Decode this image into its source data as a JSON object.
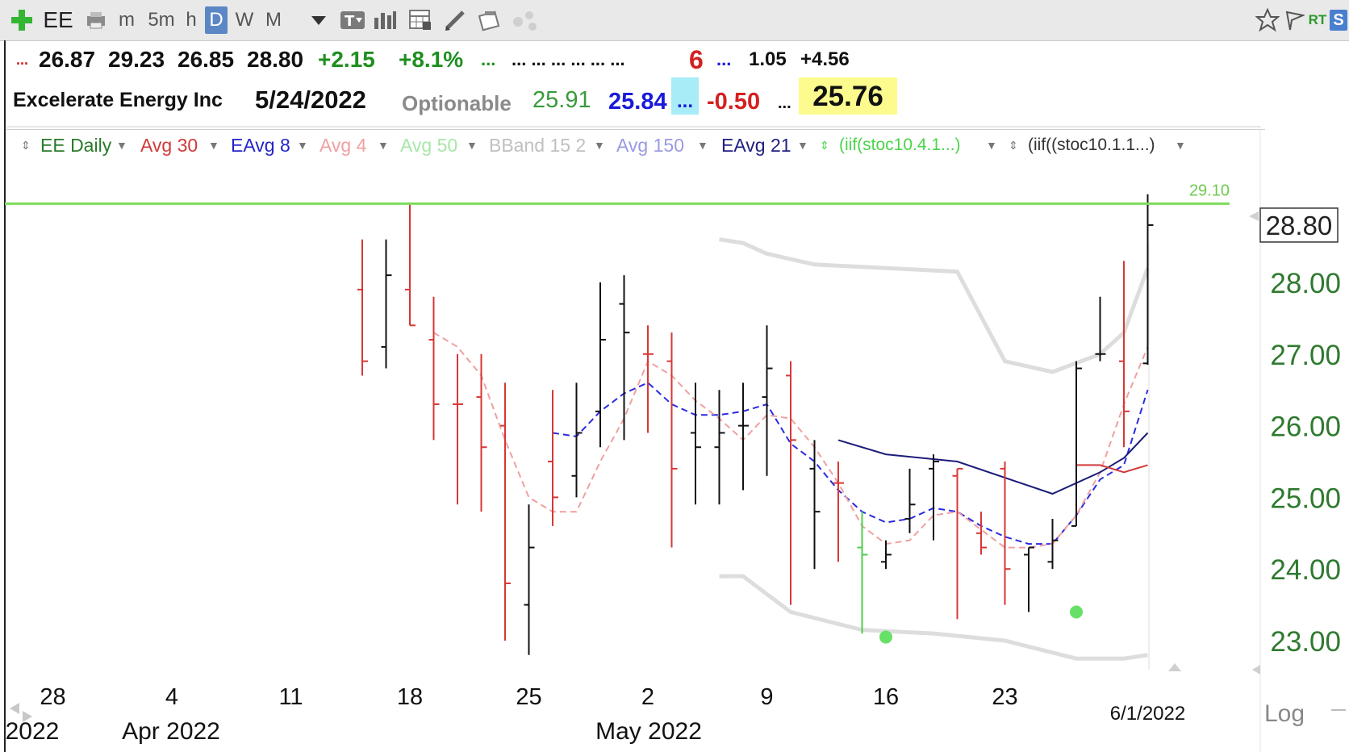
{
  "toolbar": {
    "symbol": "EE",
    "intervals": [
      "m",
      "5m",
      "h",
      "D",
      "W",
      "M"
    ],
    "active_interval": "D",
    "rt_label": "RT",
    "s_label": "S",
    "icons": [
      "add-icon",
      "print-icon",
      "dropdown-icon",
      "text-tool-icon",
      "bar-chart-icon",
      "calculator-icon",
      "pencil-icon",
      "clipboard-icon",
      "network-icon",
      "star-icon",
      "flag-icon"
    ]
  },
  "quote": {
    "open": "26.87",
    "high": "29.23",
    "low": "26.85",
    "close": "28.80",
    "change": "+2.15",
    "change_pct": "+8.1%",
    "dots_green": "...",
    "dots_black": "... ... ... ... ... ...",
    "count": "6",
    "dots_blue": "...",
    "value_a": "1.05",
    "value_b": "+4.56",
    "prefix_dots": "...",
    "company": "Excelerate Energy Inc",
    "date": "5/24/2022",
    "optionable": "Optionable",
    "val_green": "25.91",
    "val_blue": "25.84",
    "dots_cyan": "...",
    "val_red": "-0.50",
    "dots_black2": "...",
    "val_yellow": "25.76",
    "colors": {
      "up": "#1f8f1f",
      "down": "#d42020",
      "blue": "#1a1adb",
      "cyan": "#a8ecf7",
      "yellow": "#fdfb8e"
    }
  },
  "studies": [
    {
      "label": "EE Daily",
      "color": "#2a7a2a"
    },
    {
      "label": "Avg 30",
      "color": "#d23a3a"
    },
    {
      "label": "EAvg 8",
      "color": "#2424c8"
    },
    {
      "label": "Avg 4",
      "color": "#f0a0a0"
    },
    {
      "label": "Avg 50",
      "color": "#a8e6a8"
    },
    {
      "label": "BBand 15 2",
      "color": "#c0c0c0"
    },
    {
      "label": "Avg 150",
      "color": "#9a9ae0"
    },
    {
      "label": "EAvg 21",
      "color": "#202080"
    },
    {
      "label": "(iif(stoc10.4.1...)",
      "color": "#4ad44a"
    },
    {
      "label": "(iif((stoc10.1.1...)",
      "color": "#333333"
    }
  ],
  "chart_data": {
    "type": "bar",
    "subtype": "ohlc",
    "x_tick_labels": [
      "28",
      "4",
      "11",
      "18",
      "25",
      "2",
      "9",
      "16",
      "23"
    ],
    "x_month_labels": [
      "2022",
      "Apr 2022",
      "May 2022"
    ],
    "last_date_label": "6/1/2022",
    "y_ticks": [
      "28.00",
      "27.00",
      "26.00",
      "25.00",
      "24.00",
      "23.00"
    ],
    "ylim": [
      22.7,
      29.3
    ],
    "scale_label": "Log",
    "last_price_label": "28.80",
    "resistance": {
      "value": 29.1,
      "label": "29.10",
      "color": "#7ddc5a"
    },
    "bars": [
      {
        "date": "2022-04-14",
        "o": 27.9,
        "h": 28.6,
        "l": 26.7,
        "c": 26.9,
        "dir": "down"
      },
      {
        "date": "2022-04-15",
        "o": 27.1,
        "h": 28.6,
        "l": 26.8,
        "c": 28.1,
        "dir": "up"
      },
      {
        "date": "2022-04-18",
        "o": 27.9,
        "h": 29.1,
        "l": 27.4,
        "c": 27.4,
        "dir": "down"
      },
      {
        "date": "2022-04-19",
        "o": 27.2,
        "h": 27.8,
        "l": 25.8,
        "c": 26.3,
        "dir": "down"
      },
      {
        "date": "2022-04-20",
        "o": 26.3,
        "h": 27.0,
        "l": 24.9,
        "c": 26.3,
        "dir": "down"
      },
      {
        "date": "2022-04-21",
        "o": 26.4,
        "h": 27.0,
        "l": 24.8,
        "c": 25.7,
        "dir": "down"
      },
      {
        "date": "2022-04-22",
        "o": 26.0,
        "h": 26.6,
        "l": 23.0,
        "c": 23.8,
        "dir": "down"
      },
      {
        "date": "2022-04-25",
        "o": 23.5,
        "h": 24.9,
        "l": 22.8,
        "c": 24.3,
        "dir": "up"
      },
      {
        "date": "2022-04-26",
        "o": 25.5,
        "h": 26.5,
        "l": 24.6,
        "c": 25.0,
        "dir": "down"
      },
      {
        "date": "2022-04-27",
        "o": 25.3,
        "h": 26.6,
        "l": 25.0,
        "c": 25.9,
        "dir": "up"
      },
      {
        "date": "2022-04-28",
        "o": 26.2,
        "h": 28.0,
        "l": 25.7,
        "c": 27.2,
        "dir": "up"
      },
      {
        "date": "2022-04-29",
        "o": 27.7,
        "h": 28.1,
        "l": 25.8,
        "c": 27.3,
        "dir": "up"
      },
      {
        "date": "2022-05-02",
        "o": 27.0,
        "h": 27.4,
        "l": 25.9,
        "c": 27.0,
        "dir": "down"
      },
      {
        "date": "2022-05-03",
        "o": 26.9,
        "h": 27.3,
        "l": 24.3,
        "c": 25.4,
        "dir": "down"
      },
      {
        "date": "2022-05-04",
        "o": 25.9,
        "h": 26.6,
        "l": 24.9,
        "c": 25.7,
        "dir": "up"
      },
      {
        "date": "2022-05-05",
        "o": 25.7,
        "h": 26.5,
        "l": 24.9,
        "c": 25.9,
        "dir": "up"
      },
      {
        "date": "2022-05-06",
        "o": 26.0,
        "h": 26.6,
        "l": 25.1,
        "c": 26.0,
        "dir": "up"
      },
      {
        "date": "2022-05-09",
        "o": 26.4,
        "h": 27.4,
        "l": 25.3,
        "c": 26.8,
        "dir": "up"
      },
      {
        "date": "2022-05-10",
        "o": 26.7,
        "h": 26.9,
        "l": 23.5,
        "c": 25.8,
        "dir": "down"
      },
      {
        "date": "2022-05-11",
        "o": 25.4,
        "h": 25.8,
        "l": 24.0,
        "c": 24.8,
        "dir": "up"
      },
      {
        "date": "2022-05-12",
        "o": 25.2,
        "h": 25.5,
        "l": 24.1,
        "c": 25.2,
        "dir": "down"
      },
      {
        "date": "2022-05-13",
        "o": 24.3,
        "h": 24.8,
        "l": 23.1,
        "c": 24.2,
        "dir": "up"
      },
      {
        "date": "2022-05-16",
        "o": 24.1,
        "h": 24.4,
        "l": 24.0,
        "c": 24.2,
        "dir": "up"
      },
      {
        "date": "2022-05-17",
        "o": 24.7,
        "h": 25.4,
        "l": 24.5,
        "c": 24.9,
        "dir": "up"
      },
      {
        "date": "2022-05-18",
        "o": 25.4,
        "h": 25.6,
        "l": 24.4,
        "c": 25.5,
        "dir": "up"
      },
      {
        "date": "2022-05-19",
        "o": 25.3,
        "h": 25.4,
        "l": 23.3,
        "c": 25.4,
        "dir": "down"
      },
      {
        "date": "2022-05-20",
        "o": 24.5,
        "h": 24.8,
        "l": 24.2,
        "c": 24.3,
        "dir": "down"
      },
      {
        "date": "2022-05-23",
        "o": 25.4,
        "h": 25.5,
        "l": 23.5,
        "c": 24.0,
        "dir": "down"
      },
      {
        "date": "2022-05-24",
        "o": 24.2,
        "h": 24.3,
        "l": 23.4,
        "c": 24.3,
        "dir": "up"
      },
      {
        "date": "2022-05-25",
        "o": 24.1,
        "h": 24.7,
        "l": 24.0,
        "c": 24.4,
        "dir": "up"
      },
      {
        "date": "2022-05-26",
        "o": 24.6,
        "h": 26.9,
        "l": 24.6,
        "c": 26.8,
        "dir": "up"
      },
      {
        "date": "2022-05-27",
        "o": 27.0,
        "h": 27.8,
        "l": 26.9,
        "c": 27.0,
        "dir": "up"
      },
      {
        "date": "2022-05-31",
        "o": 26.9,
        "h": 28.3,
        "l": 25.7,
        "c": 26.2,
        "dir": "down"
      },
      {
        "date": "2022-06-01",
        "o": 26.87,
        "h": 29.23,
        "l": 26.85,
        "c": 28.8,
        "dir": "up"
      }
    ],
    "series": [
      {
        "name": "EAvg 8",
        "color": "#2a2ae0",
        "dash": true,
        "points": [
          [
            "2022-04-26",
            25.9
          ],
          [
            "2022-04-27",
            25.85
          ],
          [
            "2022-04-28",
            26.2
          ],
          [
            "2022-04-29",
            26.45
          ],
          [
            "2022-05-02",
            26.6
          ],
          [
            "2022-05-03",
            26.3
          ],
          [
            "2022-05-04",
            26.15
          ],
          [
            "2022-05-05",
            26.15
          ],
          [
            "2022-05-06",
            26.2
          ],
          [
            "2022-05-09",
            26.3
          ],
          [
            "2022-05-10",
            25.75
          ],
          [
            "2022-05-11",
            25.5
          ],
          [
            "2022-05-12",
            25.1
          ],
          [
            "2022-05-13",
            24.8
          ],
          [
            "2022-05-16",
            24.65
          ],
          [
            "2022-05-17",
            24.7
          ],
          [
            "2022-05-18",
            24.85
          ],
          [
            "2022-05-19",
            24.8
          ],
          [
            "2022-05-20",
            24.6
          ],
          [
            "2022-05-23",
            24.45
          ],
          [
            "2022-05-24",
            24.35
          ],
          [
            "2022-05-25",
            24.35
          ],
          [
            "2022-05-26",
            24.75
          ],
          [
            "2022-05-27",
            25.25
          ],
          [
            "2022-05-31",
            25.45
          ],
          [
            "2022-06-01",
            26.5
          ]
        ]
      },
      {
        "name": "Avg 4",
        "color": "#f0a0a0",
        "dash": true,
        "points": [
          [
            "2022-04-19",
            27.3
          ],
          [
            "2022-04-20",
            27.1
          ],
          [
            "2022-04-21",
            26.7
          ],
          [
            "2022-04-22",
            25.8
          ],
          [
            "2022-04-25",
            25.0
          ],
          [
            "2022-04-26",
            24.8
          ],
          [
            "2022-04-27",
            24.8
          ],
          [
            "2022-04-28",
            25.5
          ],
          [
            "2022-04-29",
            26.1
          ],
          [
            "2022-05-02",
            26.9
          ],
          [
            "2022-05-03",
            26.7
          ],
          [
            "2022-05-04",
            26.35
          ],
          [
            "2022-05-05",
            26.1
          ],
          [
            "2022-05-06",
            25.8
          ],
          [
            "2022-05-09",
            26.15
          ],
          [
            "2022-05-10",
            26.1
          ],
          [
            "2022-05-11",
            25.7
          ],
          [
            "2022-05-12",
            25.2
          ],
          [
            "2022-05-13",
            24.6
          ],
          [
            "2022-05-16",
            24.35
          ],
          [
            "2022-05-17",
            24.4
          ],
          [
            "2022-05-18",
            24.75
          ],
          [
            "2022-05-19",
            24.8
          ],
          [
            "2022-05-20",
            24.55
          ],
          [
            "2022-05-23",
            24.3
          ],
          [
            "2022-05-24",
            24.3
          ],
          [
            "2022-05-25",
            24.35
          ],
          [
            "2022-05-26",
            24.75
          ],
          [
            "2022-05-27",
            25.35
          ],
          [
            "2022-05-31",
            26.3
          ],
          [
            "2022-06-01",
            27.1
          ]
        ]
      },
      {
        "name": "EAvg 21",
        "color": "#1c1c7a",
        "dash": false,
        "points": [
          [
            "2022-05-12",
            25.8
          ],
          [
            "2022-05-16",
            25.6
          ],
          [
            "2022-05-19",
            25.5
          ],
          [
            "2022-05-25",
            25.05
          ],
          [
            "2022-05-27",
            25.35
          ],
          [
            "2022-05-31",
            25.55
          ],
          [
            "2022-06-01",
            25.9
          ]
        ]
      },
      {
        "name": "Avg 30",
        "color": "#d23a3a",
        "dash": false,
        "points": [
          [
            "2022-05-26",
            25.45
          ],
          [
            "2022-05-27",
            25.45
          ],
          [
            "2022-05-31",
            25.35
          ],
          [
            "2022-06-01",
            25.45
          ]
        ]
      },
      {
        "name": "BBand upper",
        "color": "#dddddd",
        "dash": false,
        "points": [
          [
            "2022-05-05",
            28.6
          ],
          [
            "2022-05-06",
            28.55
          ],
          [
            "2022-05-09",
            28.4
          ],
          [
            "2022-05-11",
            28.25
          ],
          [
            "2022-05-16",
            28.2
          ],
          [
            "2022-05-19",
            28.15
          ],
          [
            "2022-05-23",
            26.9
          ],
          [
            "2022-05-25",
            26.75
          ],
          [
            "2022-05-27",
            27.0
          ],
          [
            "2022-05-31",
            27.3
          ],
          [
            "2022-06-01",
            28.2
          ]
        ]
      },
      {
        "name": "BBand lower",
        "color": "#dddddd",
        "dash": false,
        "points": [
          [
            "2022-05-05",
            23.9
          ],
          [
            "2022-05-06",
            23.9
          ],
          [
            "2022-05-10",
            23.4
          ],
          [
            "2022-05-13",
            23.15
          ],
          [
            "2022-05-18",
            23.1
          ],
          [
            "2022-05-23",
            23.0
          ],
          [
            "2022-05-26",
            22.75
          ],
          [
            "2022-05-31",
            22.75
          ],
          [
            "2022-06-01",
            22.8
          ]
        ]
      }
    ],
    "signals": [
      {
        "date": "2022-05-16",
        "value": 23.05,
        "color": "#66e066"
      },
      {
        "date": "2022-05-26",
        "value": 23.4,
        "color": "#66e066"
      }
    ],
    "colors": {
      "up": "#111111",
      "down": "#d93636",
      "first_up_green": "#4ccf4c",
      "axis_text": "#2f7a2f"
    }
  }
}
